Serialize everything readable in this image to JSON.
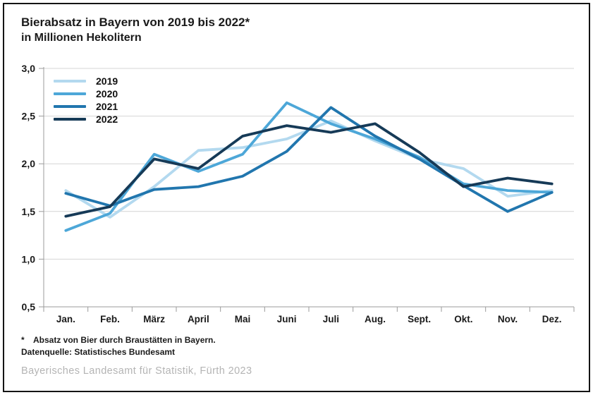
{
  "title": {
    "line1": "Bierabsatz in Bayern von 2019 bis 2022*",
    "line2": "in Millionen Hekolitern"
  },
  "footnotes": {
    "asterisk": "*",
    "note": "Absatz von Bier durch Braustätten in Bayern.",
    "source": "Datenquelle: Statistisches Bundesamt",
    "publisher": "Bayerisches Landesamt für Statistik, Fürth 2023"
  },
  "colors": {
    "grid": "#d4d4d4",
    "axis": "#9b9b9b",
    "text": "#1a1a1a"
  },
  "chart_data": {
    "type": "line",
    "title": "Bierabsatz in Bayern von 2019 bis 2022*",
    "subtitle": "in Millionen Hekolitern",
    "categories": [
      "Jan.",
      "Feb.",
      "März",
      "April",
      "Mai",
      "Juni",
      "Juli",
      "Aug.",
      "Sept.",
      "Okt.",
      "Nov.",
      "Dez."
    ],
    "series": [
      {
        "name": "2019",
        "color": "#b3d9ef",
        "values": [
          1.72,
          1.44,
          1.76,
          2.14,
          2.17,
          2.26,
          2.45,
          2.24,
          2.05,
          1.95,
          1.66,
          1.72
        ]
      },
      {
        "name": "2020",
        "color": "#4da7d8",
        "values": [
          1.3,
          1.48,
          2.1,
          1.92,
          2.1,
          2.64,
          2.42,
          2.26,
          2.07,
          1.79,
          1.72,
          1.7
        ]
      },
      {
        "name": "2021",
        "color": "#2176ae",
        "values": [
          1.69,
          1.56,
          1.73,
          1.76,
          1.87,
          2.13,
          2.59,
          2.29,
          2.05,
          1.77,
          1.5,
          1.7
        ]
      },
      {
        "name": "2022",
        "color": "#163a57",
        "values": [
          1.45,
          1.55,
          2.05,
          1.95,
          2.29,
          2.4,
          2.33,
          2.42,
          2.12,
          1.76,
          1.85,
          1.79
        ]
      }
    ],
    "xlabel": "",
    "ylabel": "in Millionen Hekolitern",
    "ylim": [
      0.5,
      3.0
    ],
    "ytick_values": [
      3.0,
      2.5,
      2.0,
      1.5,
      1.0,
      0.5
    ],
    "ytick_labels": [
      "3,0",
      "2,5",
      "2,0",
      "1,5",
      "1,0",
      "0,5"
    ],
    "grid": true,
    "legend_position": "top-left"
  }
}
